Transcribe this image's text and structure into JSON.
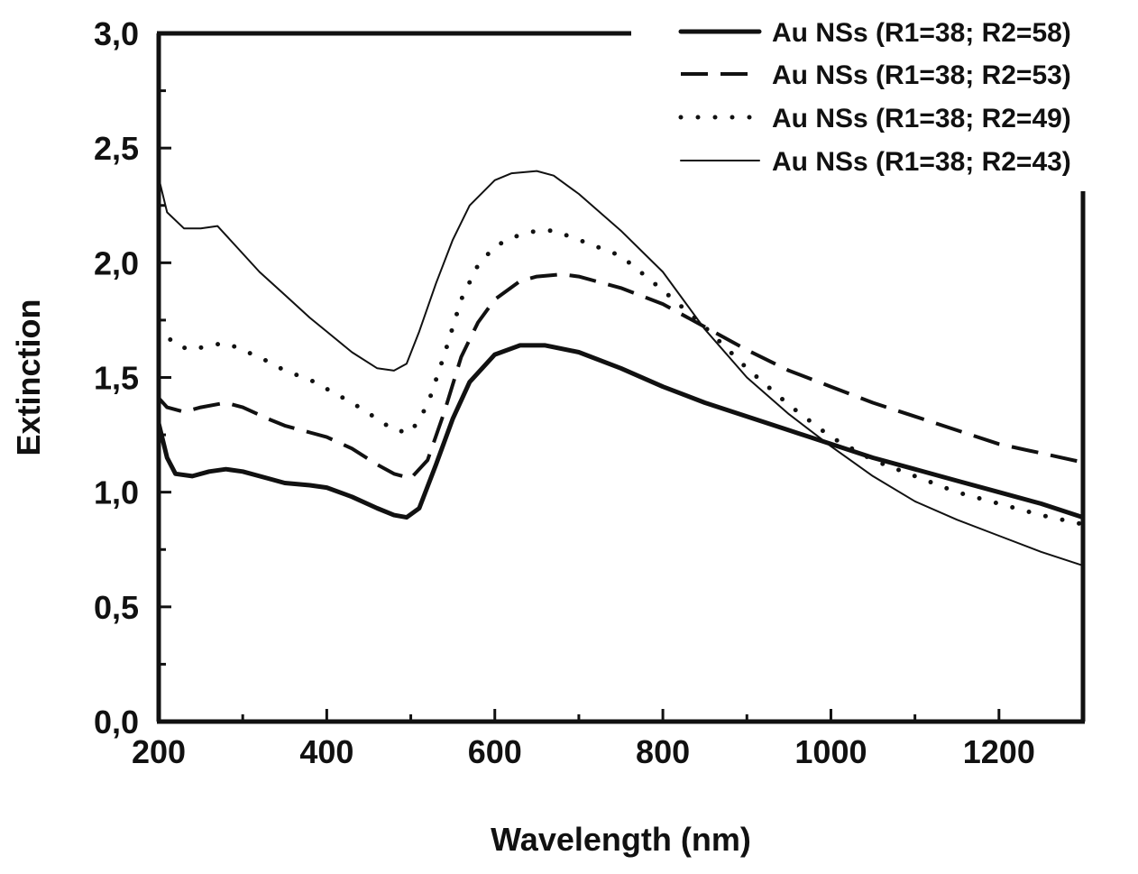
{
  "chart_data": {
    "type": "line",
    "title": "",
    "xlabel": "Wavelength (nm)",
    "ylabel": "Extinction",
    "xlim": [
      200,
      1300
    ],
    "ylim": [
      0,
      3
    ],
    "x_ticks": [
      200,
      400,
      600,
      800,
      1000,
      1200
    ],
    "x_tick_labels": [
      "200",
      "400",
      "600",
      "800",
      "1000",
      "1200"
    ],
    "y_ticks": [
      0,
      0.5,
      1,
      1.5,
      2,
      2.5,
      3
    ],
    "y_tick_labels": [
      "0,0",
      "0,5",
      "1,0",
      "1,5",
      "2,0",
      "2,5",
      "3,0"
    ],
    "grid": false,
    "legend_position": "top-right",
    "series": [
      {
        "name": "Au NSs (R1=38; R2=58)",
        "style": "solid-thick",
        "x": [
          200,
          210,
          220,
          240,
          260,
          280,
          300,
          330,
          350,
          380,
          400,
          430,
          460,
          480,
          495,
          510,
          530,
          550,
          570,
          600,
          630,
          660,
          700,
          750,
          800,
          850,
          900,
          950,
          1000,
          1050,
          1100,
          1150,
          1200,
          1250,
          1300
        ],
        "values": [
          1.3,
          1.15,
          1.08,
          1.07,
          1.09,
          1.1,
          1.09,
          1.06,
          1.04,
          1.03,
          1.02,
          0.98,
          0.93,
          0.9,
          0.89,
          0.93,
          1.12,
          1.32,
          1.48,
          1.6,
          1.64,
          1.64,
          1.61,
          1.54,
          1.46,
          1.39,
          1.33,
          1.27,
          1.21,
          1.15,
          1.1,
          1.05,
          1.0,
          0.95,
          0.89
        ]
      },
      {
        "name": "Au NSs (R1=38; R2=53)",
        "style": "dashed",
        "x": [
          200,
          210,
          230,
          250,
          280,
          300,
          330,
          350,
          380,
          400,
          430,
          460,
          480,
          500,
          520,
          540,
          560,
          580,
          600,
          630,
          650,
          680,
          700,
          750,
          800,
          850,
          900,
          950,
          1000,
          1050,
          1100,
          1150,
          1200,
          1250,
          1300
        ],
        "values": [
          1.41,
          1.37,
          1.35,
          1.37,
          1.39,
          1.37,
          1.32,
          1.29,
          1.26,
          1.24,
          1.19,
          1.12,
          1.08,
          1.06,
          1.14,
          1.35,
          1.59,
          1.74,
          1.84,
          1.92,
          1.94,
          1.95,
          1.94,
          1.89,
          1.82,
          1.72,
          1.62,
          1.53,
          1.46,
          1.39,
          1.33,
          1.27,
          1.21,
          1.17,
          1.13
        ]
      },
      {
        "name": "Au NSs (R1=38; R2=49)",
        "style": "dotted",
        "x": [
          200,
          220,
          240,
          260,
          280,
          300,
          330,
          350,
          380,
          400,
          430,
          460,
          480,
          500,
          520,
          540,
          560,
          580,
          600,
          620,
          650,
          670,
          700,
          750,
          800,
          850,
          900,
          950,
          1000,
          1050,
          1100,
          1150,
          1200,
          1250,
          1300
        ],
        "values": [
          1.72,
          1.64,
          1.62,
          1.64,
          1.65,
          1.62,
          1.57,
          1.53,
          1.49,
          1.45,
          1.39,
          1.32,
          1.27,
          1.26,
          1.38,
          1.6,
          1.84,
          1.99,
          2.07,
          2.11,
          2.14,
          2.14,
          2.1,
          2.03,
          1.88,
          1.72,
          1.54,
          1.38,
          1.24,
          1.14,
          1.07,
          1.0,
          0.95,
          0.9,
          0.86
        ]
      },
      {
        "name": "Au NSs (R1=38; R2=43)",
        "style": "solid-thin",
        "x": [
          200,
          210,
          230,
          250,
          270,
          290,
          320,
          350,
          380,
          400,
          430,
          460,
          480,
          495,
          510,
          530,
          550,
          570,
          600,
          620,
          650,
          670,
          700,
          750,
          800,
          850,
          900,
          950,
          1000,
          1050,
          1100,
          1150,
          1200,
          1250,
          1300
        ],
        "values": [
          2.37,
          2.22,
          2.15,
          2.15,
          2.16,
          2.08,
          1.96,
          1.86,
          1.76,
          1.7,
          1.61,
          1.54,
          1.53,
          1.56,
          1.7,
          1.91,
          2.1,
          2.25,
          2.36,
          2.39,
          2.4,
          2.38,
          2.3,
          2.14,
          1.96,
          1.71,
          1.5,
          1.34,
          1.2,
          1.07,
          0.96,
          0.88,
          0.81,
          0.74,
          0.68
        ]
      }
    ]
  }
}
